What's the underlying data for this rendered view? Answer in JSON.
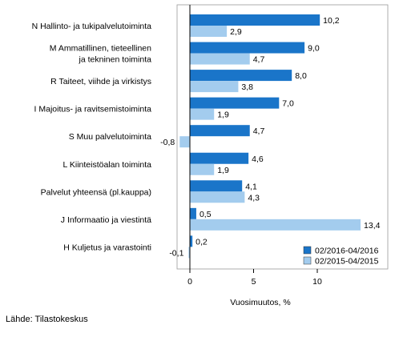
{
  "chart_data": {
    "type": "bar",
    "orientation": "horizontal",
    "categories": [
      [
        "N Hallinto- ja tukipalvelutoiminta"
      ],
      [
        "M Ammatillinen, tieteellinen",
        "ja tekninen toiminta"
      ],
      [
        "R Taiteet, viihde ja virkistys"
      ],
      [
        "I Majoitus- ja ravitsemistoiminta"
      ],
      [
        "S Muu palvelutoiminta"
      ],
      [
        "L Kiinteistöalan toiminta"
      ],
      [
        "Palvelut yhteensä (pl.kauppa)"
      ],
      [
        "J Informaatio ja viestintä"
      ],
      [
        "H Kuljetus ja varastointi"
      ]
    ],
    "series": [
      {
        "name": "02/2016-04/2016",
        "color": "#1a75c9",
        "values": [
          10.2,
          9.0,
          8.0,
          7.0,
          4.7,
          4.6,
          4.1,
          0.5,
          0.2
        ],
        "labels": [
          "10,2",
          "9,0",
          "8,0",
          "7,0",
          "4,7",
          "4,6",
          "4,1",
          "0,5",
          "0,2"
        ]
      },
      {
        "name": "02/2015-04/2015",
        "color": "#a3ccee",
        "values": [
          2.9,
          4.7,
          3.8,
          1.9,
          -0.8,
          1.9,
          4.3,
          13.4,
          -0.1
        ],
        "labels": [
          "2,9",
          "4,7",
          "3,8",
          "1,9",
          "-0,8",
          "1,9",
          "4,3",
          "13,4",
          "-0,1"
        ]
      }
    ],
    "xlabel": "Vuosimuutos, %",
    "xlim": [
      -2,
      15
    ],
    "xticks": [
      0,
      5,
      10
    ],
    "xtick_labels": [
      "0",
      "5",
      "10"
    ],
    "grid": false,
    "legend_position": "bottom-right"
  },
  "source": "Lähde: Tilastokeskus"
}
